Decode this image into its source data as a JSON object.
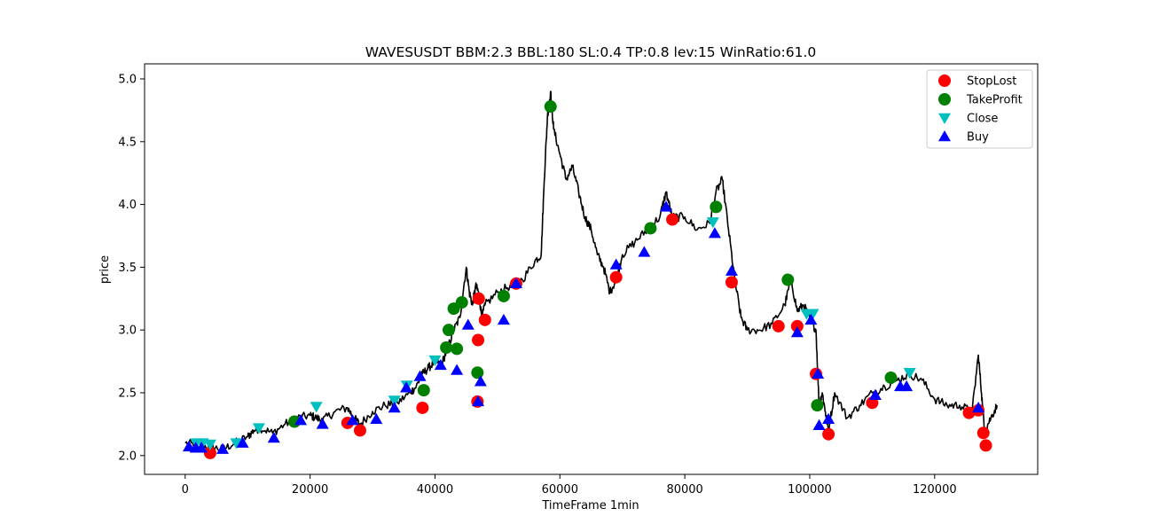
{
  "chart_data": {
    "type": "line",
    "title": "WAVESUSDT BBM:2.3 BBL:180 SL:0.4 TP:0.8 lev:15 WinRatio:61.0",
    "xlabel": "TimeFrame 1min",
    "ylabel": "price",
    "xlim": [
      -6500,
      136500
    ],
    "ylim": [
      1.85,
      5.12
    ],
    "xticks": [
      0,
      20000,
      40000,
      60000,
      80000,
      100000,
      120000
    ],
    "xtick_labels": [
      "0",
      "20000",
      "40000",
      "60000",
      "80000",
      "100000",
      "120000"
    ],
    "yticks": [
      2.0,
      2.5,
      3.0,
      3.5,
      4.0,
      4.5,
      5.0
    ],
    "ytick_labels": [
      "2.0",
      "2.5",
      "3.0",
      "3.5",
      "4.0",
      "4.5",
      "5.0"
    ],
    "grid": false,
    "legend_position": "top-right",
    "legend": [
      {
        "label": "StopLost",
        "marker": "circle",
        "color": "#ff0000"
      },
      {
        "label": "TakeProfit",
        "marker": "circle",
        "color": "#008000"
      },
      {
        "label": "Close",
        "marker": "triangle-down",
        "color": "#00bfbf"
      },
      {
        "label": "Buy",
        "marker": "triangle-up",
        "color": "#0000ff"
      }
    ],
    "price": {
      "color": "#000000",
      "x": [
        0,
        2000,
        4000,
        6000,
        8000,
        10000,
        11000,
        12000,
        14000,
        16000,
        18000,
        20000,
        21000,
        22000,
        24000,
        26000,
        27000,
        28000,
        30000,
        32000,
        34000,
        36000,
        37000,
        38000,
        39000,
        40000,
        41000,
        42000,
        43000,
        44000,
        45000,
        45500,
        46000,
        46500,
        47000,
        47500,
        48000,
        50000,
        52000,
        54000,
        56000,
        57000,
        57500,
        58000,
        58500,
        59000,
        60000,
        61000,
        62000,
        63000,
        64000,
        65000,
        66000,
        67000,
        68000,
        69000,
        70000,
        72000,
        74000,
        76000,
        77000,
        78000,
        80000,
        82000,
        84000,
        85000,
        86000,
        87000,
        88000,
        89000,
        90000,
        92000,
        94000,
        96000,
        97000,
        98000,
        99000,
        100000,
        101000,
        101500,
        102000,
        102500,
        103000,
        104000,
        106000,
        108000,
        110000,
        112000,
        114000,
        116000,
        118000,
        120000,
        122000,
        124000,
        126000,
        127000,
        127500,
        128000,
        129000,
        130000
      ],
      "y": [
        2.1,
        2.08,
        2.07,
        2.05,
        2.1,
        2.15,
        2.2,
        2.22,
        2.18,
        2.25,
        2.3,
        2.32,
        2.3,
        2.28,
        2.35,
        2.38,
        2.3,
        2.25,
        2.35,
        2.4,
        2.42,
        2.5,
        2.55,
        2.65,
        2.7,
        2.75,
        2.72,
        2.85,
        3.0,
        3.1,
        3.5,
        3.3,
        3.2,
        3.35,
        3.3,
        3.1,
        3.2,
        3.3,
        3.35,
        3.4,
        3.55,
        3.6,
        4.2,
        4.7,
        4.9,
        4.6,
        4.4,
        4.2,
        4.3,
        4.1,
        3.9,
        3.8,
        3.6,
        3.5,
        3.3,
        3.4,
        3.6,
        3.7,
        3.8,
        3.9,
        4.1,
        3.9,
        3.9,
        3.8,
        3.85,
        4.1,
        4.2,
        3.8,
        3.4,
        3.1,
        3.0,
        3.0,
        3.05,
        3.2,
        3.4,
        3.15,
        3.2,
        3.1,
        3.0,
        2.4,
        2.5,
        2.35,
        2.2,
        2.5,
        2.3,
        2.4,
        2.5,
        2.55,
        2.6,
        2.65,
        2.6,
        2.45,
        2.4,
        2.4,
        2.35,
        2.8,
        2.5,
        2.2,
        2.3,
        2.4
      ]
    },
    "series": [
      {
        "name": "StopLost",
        "x": [
          4000,
          26000,
          28000,
          38000,
          46800,
          46900,
          47000,
          48000,
          53000,
          69000,
          78000,
          87500,
          95000,
          98000,
          101000,
          103000,
          110000,
          125500,
          127000,
          127800,
          128200
        ],
        "y": [
          2.02,
          2.26,
          2.2,
          2.38,
          2.43,
          2.92,
          3.25,
          3.08,
          3.37,
          3.42,
          3.88,
          3.38,
          3.03,
          3.03,
          2.65,
          2.17,
          2.42,
          2.34,
          2.36,
          2.18,
          2.08
        ]
      },
      {
        "name": "TakeProfit",
        "x": [
          17500,
          38200,
          41800,
          42200,
          43000,
          43500,
          44300,
          46800,
          51000,
          58500,
          74500,
          85000,
          96500,
          101200,
          113000
        ],
        "y": [
          2.27,
          2.52,
          2.86,
          3.0,
          3.17,
          2.85,
          3.22,
          2.66,
          3.27,
          4.78,
          3.81,
          3.98,
          3.4,
          2.4,
          2.62
        ]
      },
      {
        "name": "Close",
        "x": [
          1800,
          2800,
          4000,
          8200,
          11800,
          21000,
          33500,
          35500,
          40000,
          84500,
          99500,
          100500,
          116000
        ],
        "y": [
          2.1,
          2.1,
          2.09,
          2.1,
          2.22,
          2.39,
          2.44,
          2.56,
          2.76,
          3.86,
          3.13,
          3.13,
          2.66
        ]
      },
      {
        "name": "Buy",
        "x": [
          600,
          1700,
          2600,
          6000,
          9200,
          14200,
          18500,
          22000,
          26800,
          30600,
          33500,
          35400,
          37600,
          40900,
          43500,
          45300,
          46900,
          47300,
          51000,
          53000,
          69000,
          73500,
          77000,
          84800,
          87500,
          98000,
          100200,
          101300,
          101500,
          103000,
          110500,
          114500,
          115500,
          127000
        ],
        "y": [
          2.07,
          2.06,
          2.06,
          2.05,
          2.1,
          2.14,
          2.28,
          2.25,
          2.28,
          2.29,
          2.38,
          2.54,
          2.63,
          2.72,
          2.68,
          3.04,
          2.43,
          2.59,
          3.08,
          3.37,
          3.52,
          3.62,
          3.98,
          3.77,
          3.47,
          2.98,
          3.08,
          2.65,
          2.24,
          2.29,
          2.48,
          2.55,
          2.55,
          2.38
        ]
      }
    ]
  }
}
